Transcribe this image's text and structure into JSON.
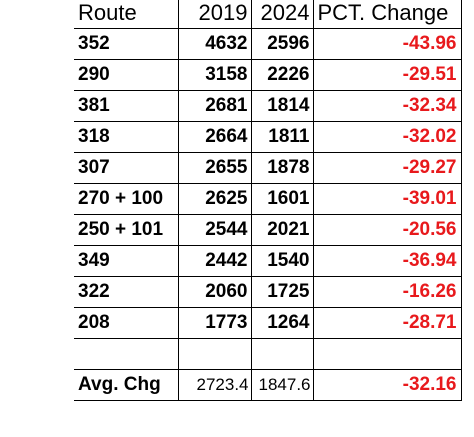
{
  "table": {
    "headers": {
      "route": "Route",
      "y2019": "2019",
      "y2024": "2024",
      "pct": "PCT. Change"
    },
    "rows": [
      {
        "route": "352",
        "y2019": "4632",
        "y2024": "2596",
        "pct": "-43.96"
      },
      {
        "route": "290",
        "y2019": "3158",
        "y2024": "2226",
        "pct": "-29.51"
      },
      {
        "route": "381",
        "y2019": "2681",
        "y2024": "1814",
        "pct": "-32.34"
      },
      {
        "route": "318",
        "y2019": "2664",
        "y2024": "1811",
        "pct": "-32.02"
      },
      {
        "route": "307",
        "y2019": "2655",
        "y2024": "1878",
        "pct": "-29.27"
      },
      {
        "route": "270 + 100",
        "y2019": "2625",
        "y2024": "1601",
        "pct": "-39.01"
      },
      {
        "route": "250 + 101",
        "y2019": "2544",
        "y2024": "2021",
        "pct": "-20.56"
      },
      {
        "route": "349",
        "y2019": "2442",
        "y2024": "1540",
        "pct": "-36.94"
      },
      {
        "route": "322",
        "y2019": "2060",
        "y2024": "1725",
        "pct": "-16.26"
      },
      {
        "route": "208",
        "y2019": "1773",
        "y2024": "1264",
        "pct": "-28.71"
      }
    ],
    "average": {
      "label": "Avg. Chg",
      "y2019": "2723.4",
      "y2024": "1847.6",
      "pct": "-32.16"
    }
  },
  "colors": {
    "negative_change": "#e8191c",
    "text": "#000000",
    "grid": "#000000"
  }
}
